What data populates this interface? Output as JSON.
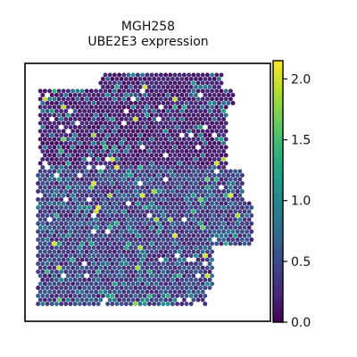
{
  "chart_data": {
    "type": "scatter",
    "subtype": "spatial-hex-spot-map",
    "title": "MGH258",
    "subtitle": "UBE2E3 expression",
    "xlabel": "",
    "ylabel": "",
    "axes_ticks_visible": false,
    "grid": false,
    "legend": "none",
    "colormap": "viridis",
    "colormap_stops": [
      "#440154",
      "#482878",
      "#3e4989",
      "#31688e",
      "#26828e",
      "#1f9e89",
      "#35b779",
      "#6ece58",
      "#b5de2b",
      "#fde725"
    ],
    "colorbar": {
      "range": [
        0,
        2.15
      ],
      "ticks": [
        0.0,
        0.5,
        1.0,
        1.5,
        2.0
      ],
      "tick_labels": [
        "0.0",
        "0.5",
        "1.0",
        "1.5",
        "2.0"
      ],
      "placement": "right"
    },
    "spot_summary": {
      "approx_value_range": [
        0,
        2.15
      ],
      "dominant_value_range": [
        0.0,
        0.6
      ],
      "frame_background": "#ffffff"
    }
  }
}
